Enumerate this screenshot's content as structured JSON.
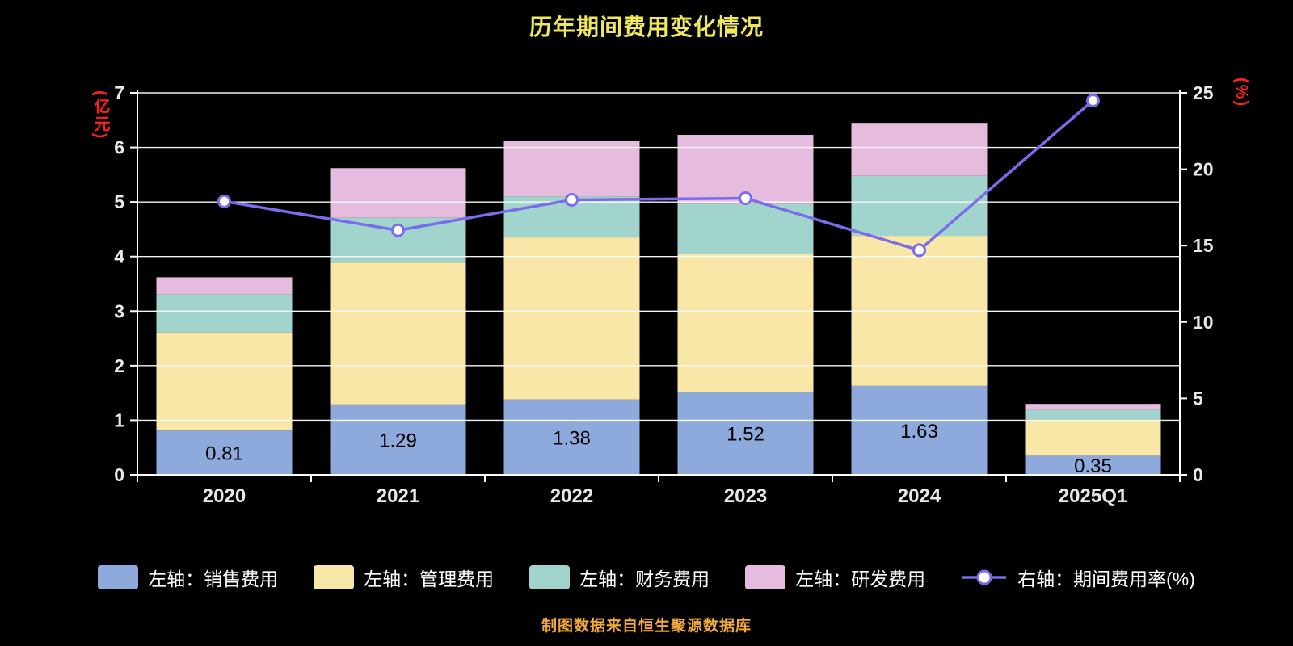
{
  "title": "历年期间费用变化情况",
  "footer": "制图数据来自恒生聚源数据库",
  "left_axis_label": "(亿元)",
  "right_axis_label": "(%)",
  "colors": {
    "background": "#000000",
    "title": "#EFE75C",
    "footer": "#F2A93B",
    "axis_label": "#FF1F1F",
    "axis_text": "#E8E8E8",
    "grid": "#FFFFFF",
    "bar_label": "#000000"
  },
  "chart_data": {
    "type": "bar",
    "subtype": "stacked-bar-with-line",
    "categories": [
      "2020",
      "2021",
      "2022",
      "2023",
      "2024",
      "2025Q1"
    ],
    "stack_series": [
      {
        "name": "左轴：销售费用",
        "color": "#8EA9DB",
        "values": [
          0.81,
          1.29,
          1.38,
          1.52,
          1.63,
          0.35
        ]
      },
      {
        "name": "左轴：管理费用",
        "color": "#F8E7A6",
        "values": [
          1.8,
          2.6,
          2.97,
          2.53,
          2.75,
          0.66
        ]
      },
      {
        "name": "左轴：财务费用",
        "color": "#A0D4CC",
        "values": [
          0.7,
          0.82,
          0.75,
          0.91,
          1.1,
          0.18
        ]
      },
      {
        "name": "左轴：研发费用",
        "color": "#E5BBDE",
        "values": [
          0.31,
          0.91,
          1.02,
          1.27,
          0.97,
          0.11
        ]
      }
    ],
    "bar_labels": [
      "0.81",
      "1.29",
      "1.38",
      "1.52",
      "1.63",
      "0.35"
    ],
    "line_series": {
      "name": "右轴：期间费用率(%)",
      "color": "#7B6CEB",
      "values": [
        17.9,
        16.0,
        18.0,
        18.1,
        14.7,
        24.5
      ]
    },
    "left_axis": {
      "min": 0,
      "max": 7,
      "ticks": [
        0,
        1,
        2,
        3,
        4,
        5,
        6,
        7
      ]
    },
    "right_axis": {
      "min": 0,
      "max": 25,
      "ticks": [
        0,
        5,
        10,
        15,
        20,
        25
      ]
    },
    "legend_position": "bottom",
    "grid": true
  }
}
